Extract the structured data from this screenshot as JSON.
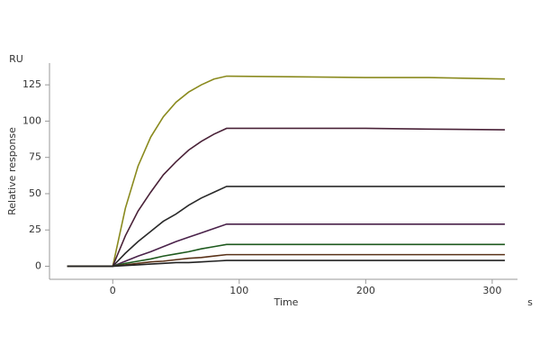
{
  "chart_data": {
    "type": "line",
    "y_unit": "RU",
    "x_unit": "s",
    "xlabel": "Time",
    "ylabel": "Relative response",
    "x": [
      -36,
      0,
      10,
      20,
      30,
      40,
      50,
      60,
      70,
      80,
      90,
      150,
      200,
      250,
      310
    ],
    "series": [
      {
        "color": "#8a8a1e",
        "values": [
          0,
          0,
          40,
          69,
          89,
          103,
          113,
          120,
          125,
          129,
          131,
          130.5,
          130,
          130,
          129
        ]
      },
      {
        "color": "#4a2238",
        "values": [
          0,
          0,
          21,
          38,
          51,
          63,
          72,
          80,
          86,
          91,
          95,
          95,
          95,
          94.5,
          94
        ]
      },
      {
        "color": "#2a2a2a",
        "values": [
          0,
          0,
          9,
          17,
          24,
          31,
          36,
          42,
          47,
          51,
          55,
          55,
          55,
          55,
          55
        ]
      },
      {
        "color": "#4a224a",
        "values": [
          0,
          0,
          3.5,
          7,
          10,
          13.5,
          17,
          20,
          23,
          26,
          29,
          29,
          29,
          29,
          29
        ]
      },
      {
        "color": "#1e5a1e",
        "values": [
          0,
          0,
          2,
          3.5,
          5,
          7,
          8.5,
          10,
          12,
          13.5,
          15,
          15,
          15,
          15,
          15
        ]
      },
      {
        "color": "#5a3218",
        "values": [
          0,
          0,
          1,
          2,
          3,
          3.5,
          4.5,
          5.5,
          6,
          7,
          8,
          8,
          8,
          8,
          8
        ]
      },
      {
        "color": "#222222",
        "values": [
          0,
          0,
          0.5,
          1,
          1.5,
          2,
          2.5,
          2.5,
          3,
          3.5,
          4,
          4,
          4,
          4,
          4
        ]
      }
    ],
    "xlim": [
      -50,
      320
    ],
    "xticks": [
      0,
      100,
      200,
      300
    ],
    "ylim": [
      -9,
      140
    ],
    "yticks": [
      0,
      25,
      50,
      75,
      100,
      125
    ]
  }
}
